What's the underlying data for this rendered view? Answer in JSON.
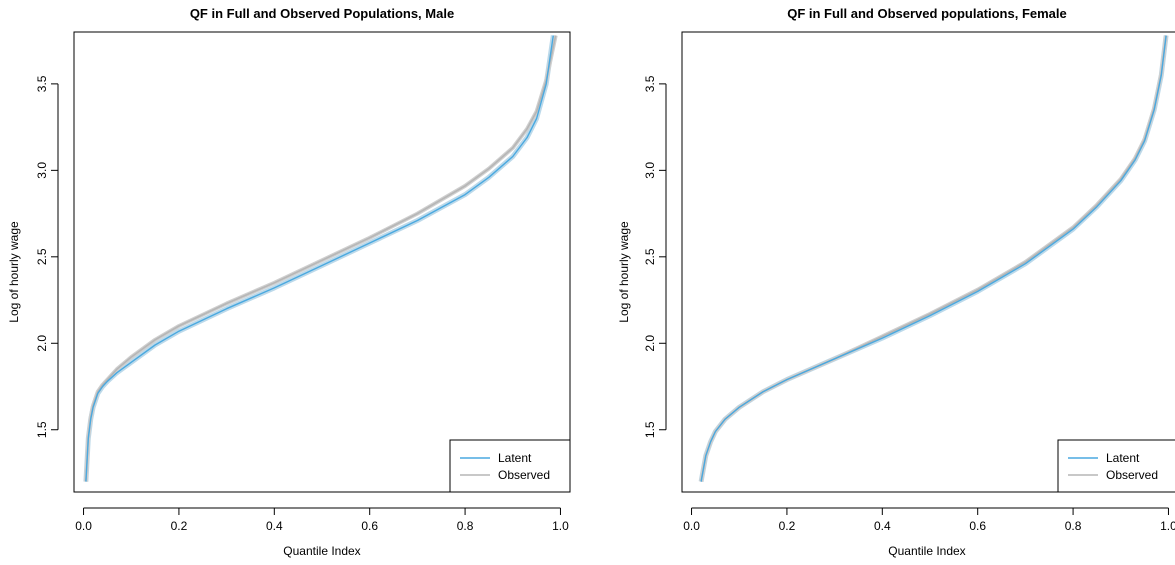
{
  "colors": {
    "latent": "#4aa9e0",
    "latent_band": "#bcd9ea",
    "observed": "#b6b6b6",
    "axis": "#000000"
  },
  "chart_data": [
    {
      "type": "line",
      "title": "QF in Full and Observed Populations, Male",
      "xlabel": "Quantile Index",
      "ylabel": "Log of hourly wage",
      "xlim": [
        -0.02,
        1.02
      ],
      "ylim": [
        1.14,
        3.8
      ],
      "xticks": [
        "0.0",
        "0.2",
        "0.4",
        "0.6",
        "0.8",
        "1.0"
      ],
      "yticks": [
        "1.5",
        "2.0",
        "2.5",
        "3.0",
        "3.5"
      ],
      "legend_position": "bottom-right",
      "grid": false,
      "series": [
        {
          "name": "Latent",
          "x": [
            0.005,
            0.01,
            0.015,
            0.02,
            0.03,
            0.04,
            0.05,
            0.07,
            0.1,
            0.15,
            0.2,
            0.3,
            0.4,
            0.5,
            0.6,
            0.7,
            0.8,
            0.85,
            0.9,
            0.93,
            0.95,
            0.97,
            0.985
          ],
          "y": [
            1.2,
            1.45,
            1.56,
            1.63,
            1.71,
            1.75,
            1.78,
            1.83,
            1.89,
            1.99,
            2.07,
            2.2,
            2.32,
            2.45,
            2.58,
            2.71,
            2.86,
            2.96,
            3.08,
            3.19,
            3.3,
            3.5,
            3.78
          ]
        },
        {
          "name": "Observed",
          "x": [
            0.005,
            0.01,
            0.015,
            0.02,
            0.03,
            0.04,
            0.05,
            0.07,
            0.1,
            0.15,
            0.2,
            0.3,
            0.4,
            0.5,
            0.6,
            0.7,
            0.8,
            0.85,
            0.9,
            0.93,
            0.95,
            0.97,
            0.99
          ],
          "y": [
            1.2,
            1.46,
            1.57,
            1.64,
            1.72,
            1.76,
            1.79,
            1.85,
            1.92,
            2.02,
            2.1,
            2.23,
            2.35,
            2.48,
            2.61,
            2.75,
            2.91,
            3.01,
            3.13,
            3.24,
            3.34,
            3.52,
            3.78
          ]
        }
      ]
    },
    {
      "type": "line",
      "title": "QF in Full and Observed populations, Female",
      "xlabel": "Quantile Index",
      "ylabel": "Log of hourly wage",
      "xlim": [
        -0.02,
        1.02
      ],
      "ylim": [
        1.14,
        3.8
      ],
      "xticks": [
        "0.0",
        "0.2",
        "0.4",
        "0.6",
        "0.8",
        "1.0"
      ],
      "yticks": [
        "1.5",
        "2.0",
        "2.5",
        "3.0",
        "3.5"
      ],
      "legend_position": "bottom-right",
      "grid": false,
      "series": [
        {
          "name": "Latent",
          "x": [
            0.02,
            0.03,
            0.04,
            0.05,
            0.07,
            0.1,
            0.15,
            0.2,
            0.3,
            0.4,
            0.5,
            0.6,
            0.7,
            0.8,
            0.85,
            0.9,
            0.93,
            0.95,
            0.97,
            0.985,
            0.995
          ],
          "y": [
            1.2,
            1.35,
            1.43,
            1.49,
            1.56,
            1.63,
            1.72,
            1.79,
            1.91,
            2.03,
            2.16,
            2.3,
            2.46,
            2.66,
            2.79,
            2.94,
            3.06,
            3.17,
            3.35,
            3.55,
            3.78
          ]
        },
        {
          "name": "Observed",
          "x": [
            0.02,
            0.03,
            0.04,
            0.05,
            0.07,
            0.1,
            0.15,
            0.2,
            0.3,
            0.4,
            0.5,
            0.6,
            0.7,
            0.8,
            0.85,
            0.9,
            0.93,
            0.95,
            0.97,
            0.985,
            0.995
          ],
          "y": [
            1.2,
            1.35,
            1.43,
            1.49,
            1.56,
            1.63,
            1.72,
            1.79,
            1.91,
            2.04,
            2.17,
            2.31,
            2.47,
            2.67,
            2.8,
            2.95,
            3.07,
            3.18,
            3.36,
            3.56,
            3.78
          ]
        }
      ]
    }
  ]
}
